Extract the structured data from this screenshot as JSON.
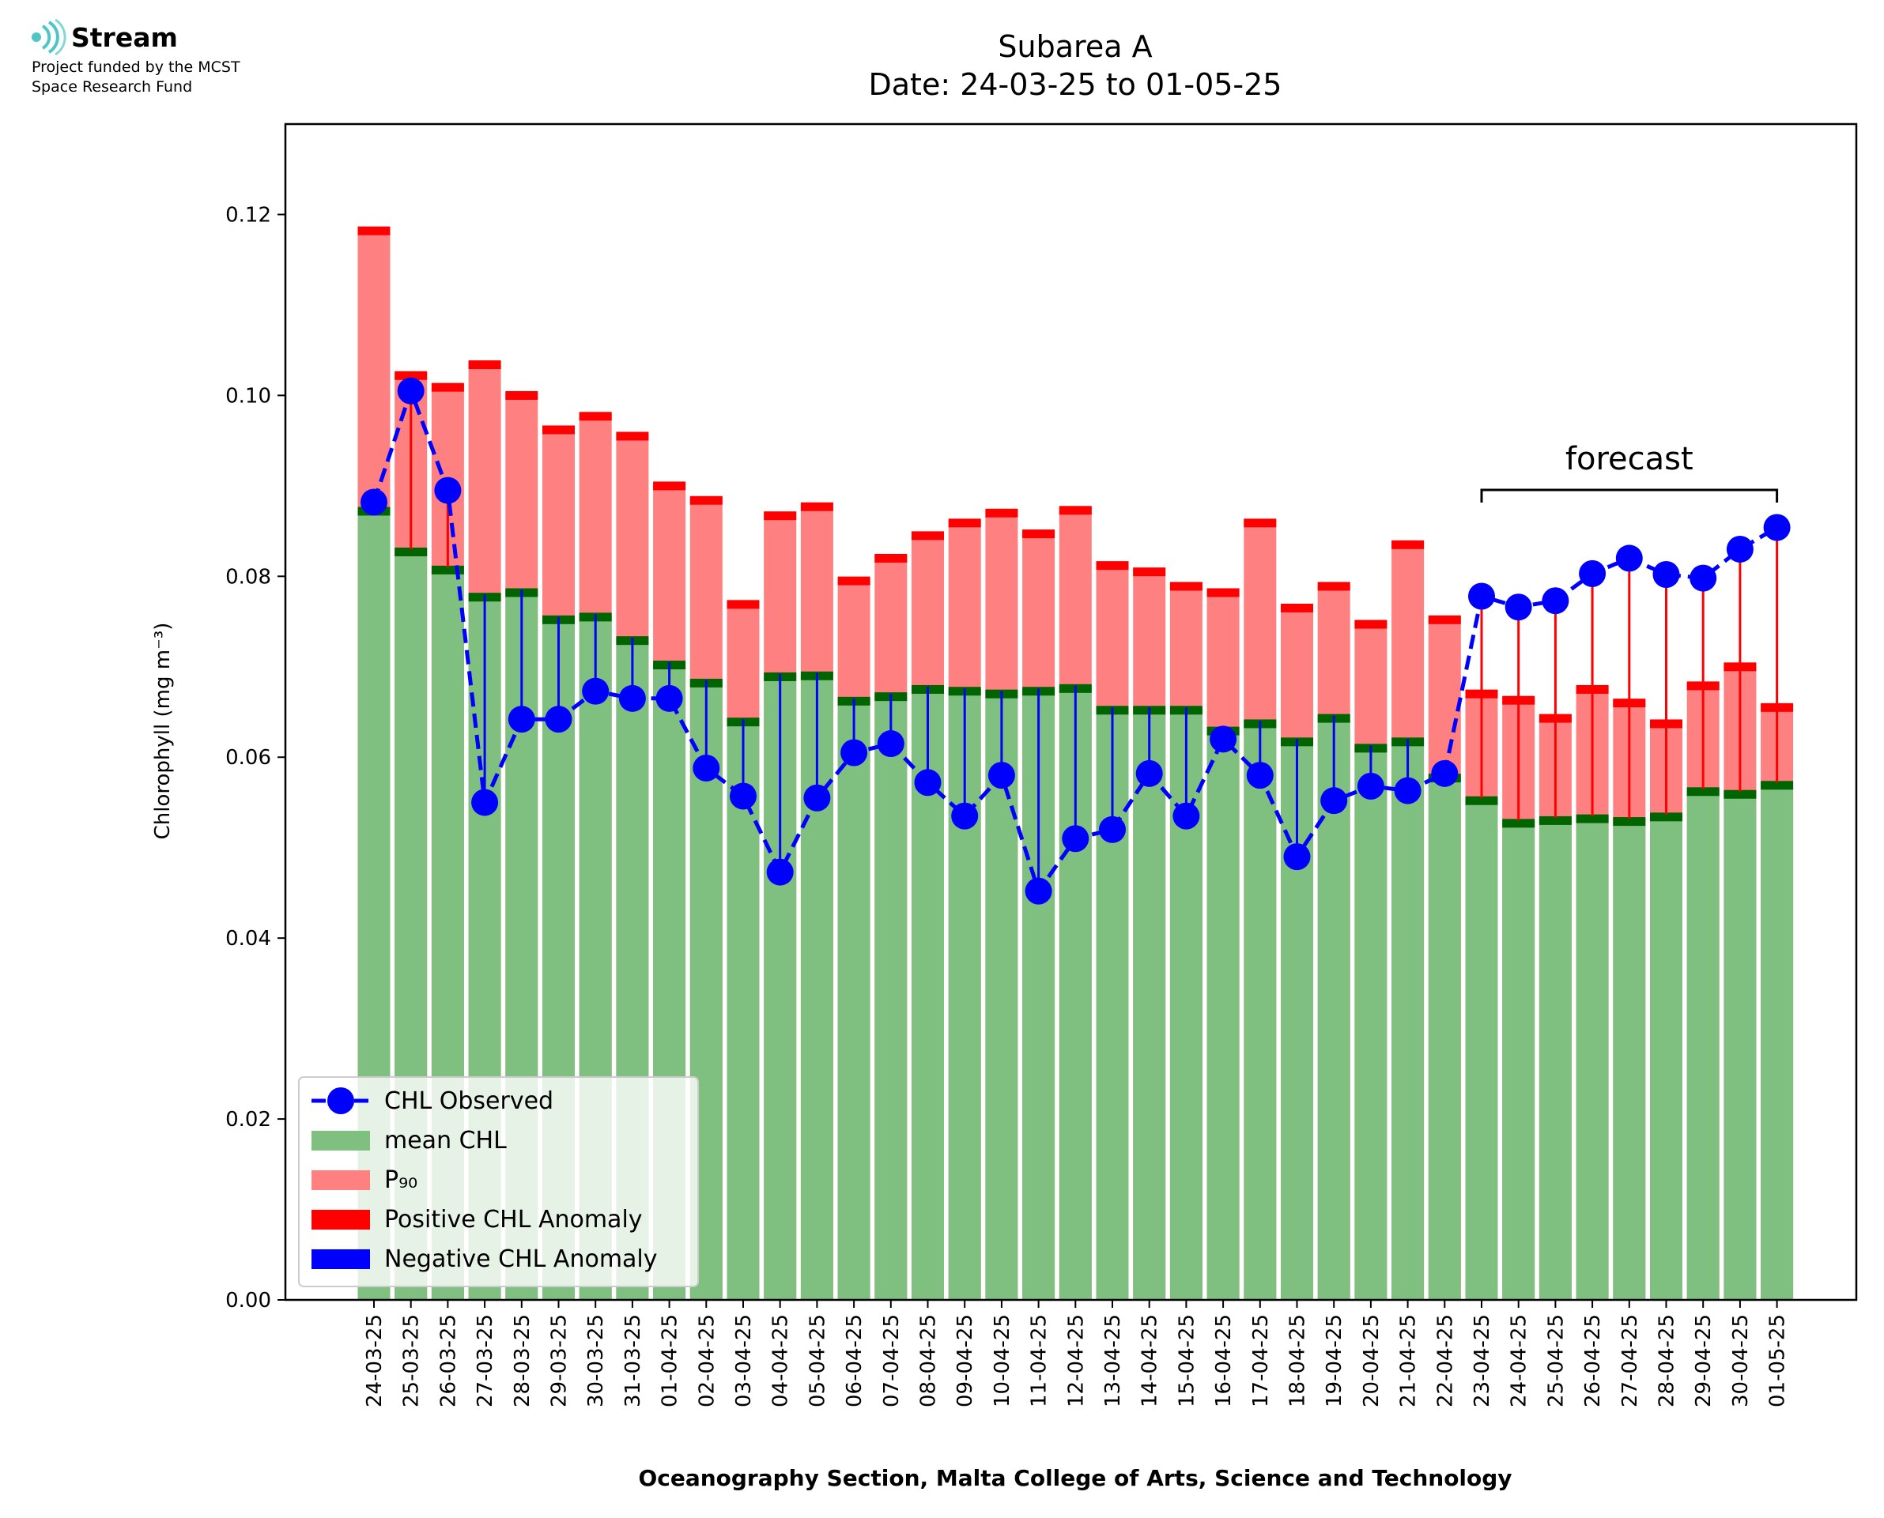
{
  "logo": {
    "name": "Stream",
    "line1": "Project funded by the MCST",
    "line2": "Space Research Fund",
    "color": "#4fc6c6"
  },
  "chart_data": {
    "type": "bar",
    "title": "Subarea A",
    "subtitle": "Date: 24-03-25 to 01-05-25",
    "xlabel": "Oceanography Section, Malta College of Arts, Science and Technology",
    "ylabel": "Chlorophyll (mg m⁻³)",
    "ylim": [
      0,
      0.13
    ],
    "yticks": [
      "0.00",
      "0.02",
      "0.04",
      "0.06",
      "0.08",
      "0.10",
      "0.12"
    ],
    "categories": [
      "24-03-25",
      "25-03-25",
      "26-03-25",
      "27-03-25",
      "28-03-25",
      "29-03-25",
      "30-03-25",
      "31-03-25",
      "01-04-25",
      "02-04-25",
      "03-04-25",
      "04-04-25",
      "05-04-25",
      "06-04-25",
      "07-04-25",
      "08-04-25",
      "09-04-25",
      "10-04-25",
      "11-04-25",
      "12-04-25",
      "13-04-25",
      "14-04-25",
      "15-04-25",
      "16-04-25",
      "17-04-25",
      "18-04-25",
      "19-04-25",
      "20-04-25",
      "21-04-25",
      "22-04-25",
      "23-04-25",
      "24-04-25",
      "25-04-25",
      "26-04-25",
      "27-04-25",
      "28-04-25",
      "29-04-25",
      "30-04-25",
      "01-05-25"
    ],
    "series": [
      {
        "name": "mean CHL",
        "color": "#7fbf7f",
        "values": [
          0.0875,
          0.083,
          0.081,
          0.078,
          0.0785,
          0.0755,
          0.0758,
          0.0732,
          0.0705,
          0.0685,
          0.0642,
          0.0692,
          0.0693,
          0.0665,
          0.067,
          0.0678,
          0.0676,
          0.0673,
          0.0676,
          0.0679,
          0.0655,
          0.0655,
          0.0655,
          0.0632,
          0.064,
          0.062,
          0.0646,
          0.0613,
          0.062,
          0.058,
          0.0555,
          0.053,
          0.0533,
          0.0535,
          0.0532,
          0.0537,
          0.0565,
          0.0562,
          0.0572
        ]
      },
      {
        "name": "P₉₀",
        "color": "#ff8080",
        "values": [
          0.1185,
          0.1025,
          0.1012,
          0.1037,
          0.1003,
          0.0965,
          0.098,
          0.0958,
          0.0903,
          0.0887,
          0.0772,
          0.087,
          0.088,
          0.0798,
          0.0823,
          0.0848,
          0.0862,
          0.0873,
          0.085,
          0.0876,
          0.0815,
          0.0808,
          0.0792,
          0.0785,
          0.0862,
          0.0768,
          0.0792,
          0.075,
          0.0838,
          0.0755,
          0.0673,
          0.0666,
          0.0646,
          0.0678,
          0.0663,
          0.064,
          0.0682,
          0.0703,
          0.0658
        ]
      },
      {
        "name": "CHL Observed",
        "color": "#0000ff",
        "values": [
          0.0882,
          0.1005,
          0.0895,
          0.055,
          0.0642,
          0.0642,
          0.0673,
          0.0665,
          0.0665,
          0.0588,
          0.0557,
          0.0473,
          0.0555,
          0.0605,
          0.0615,
          0.0572,
          0.0535,
          0.058,
          0.0452,
          0.051,
          0.052,
          0.0582,
          0.0535,
          0.062,
          0.058,
          0.049,
          0.0552,
          0.0568,
          0.0563,
          0.0582,
          0.0778,
          0.0766,
          0.0773,
          0.0803,
          0.082,
          0.0802,
          0.0798,
          0.083,
          0.0854
        ]
      }
    ],
    "legend": {
      "placement": "lower-left",
      "entries": [
        {
          "label": "CHL Observed",
          "color": "#0000ff",
          "kind": "line-marker"
        },
        {
          "label": "mean CHL",
          "color": "#7fbf7f",
          "kind": "patch"
        },
        {
          "label": "P₉₀",
          "color": "#ff8080",
          "kind": "patch"
        },
        {
          "label": "Positive CHL Anomaly",
          "color": "#ff0000",
          "kind": "patch"
        },
        {
          "label": "Negative CHL Anomaly",
          "color": "#0000ff",
          "kind": "patch"
        }
      ]
    },
    "annotation": {
      "text": "forecast",
      "from": "23-04-25",
      "to": "01-05-25"
    },
    "colors": {
      "positive_anomaly": "#ff0000",
      "negative_anomaly": "#0000ff",
      "mean_edge": "#006400"
    },
    "grid": false
  }
}
